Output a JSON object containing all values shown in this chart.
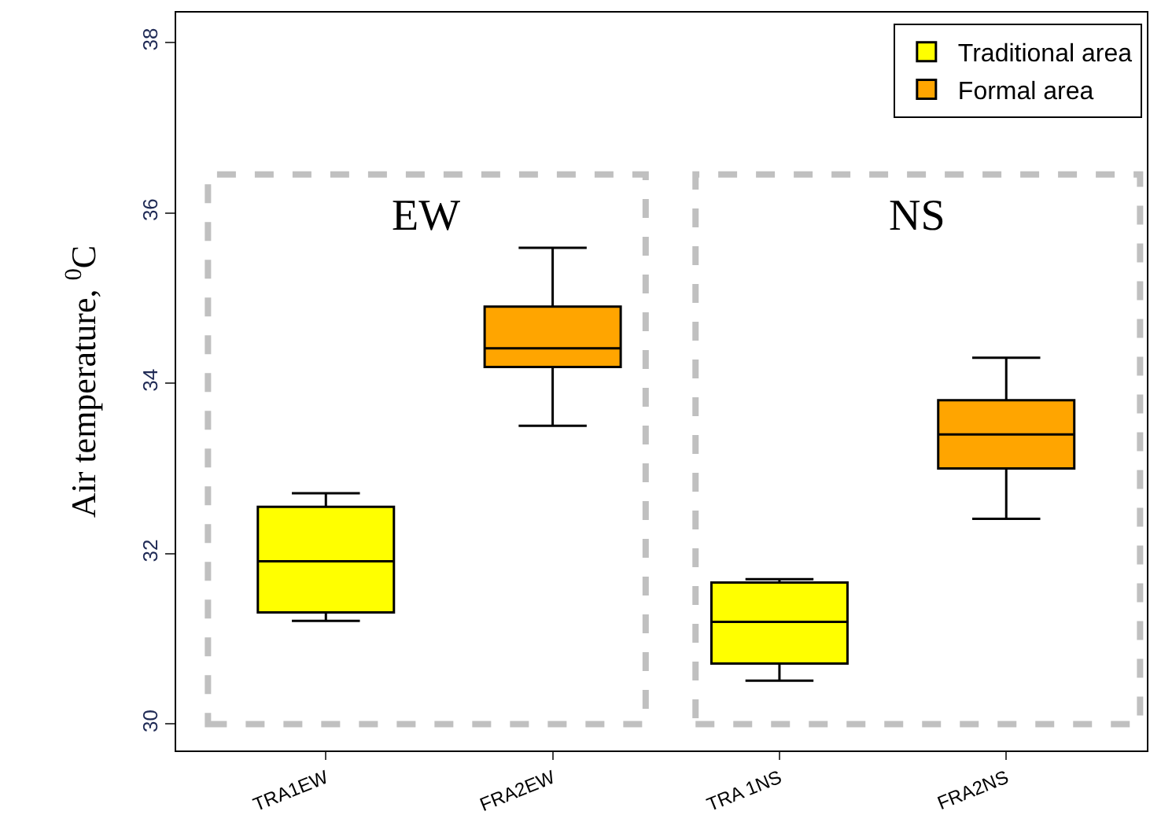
{
  "chart_data": {
    "type": "box",
    "ylabel": "Air temperature, $^{0}$C",
    "categories": [
      "TRA1EW",
      "FRA2EW",
      "TRA 1NS",
      "FRA2NS"
    ],
    "series": [
      {
        "name": "Traditional area",
        "color": "#ffff00",
        "boxes": [
          {
            "low": 31.21,
            "q1": 31.31,
            "median": 31.91,
            "q3": 32.55,
            "high": 32.71
          },
          null,
          {
            "low": 30.51,
            "q1": 30.71,
            "median": 31.2,
            "q3": 31.66,
            "high": 31.7
          },
          null
        ]
      },
      {
        "name": "Formal area",
        "color": "#ffa500",
        "boxes": [
          null,
          {
            "low": 33.5,
            "q1": 34.19,
            "median": 34.41,
            "q3": 34.9,
            "high": 35.59
          },
          null,
          {
            "low": 32.41,
            "q1": 33.0,
            "median": 33.4,
            "q3": 33.8,
            "high": 34.3
          }
        ]
      }
    ],
    "annotations": [
      "EW",
      "NS"
    ],
    "ylim": [
      29.69,
      38.35
    ],
    "yticks": [
      30,
      32,
      34,
      36,
      38
    ],
    "grid": false,
    "legend": "top right"
  }
}
